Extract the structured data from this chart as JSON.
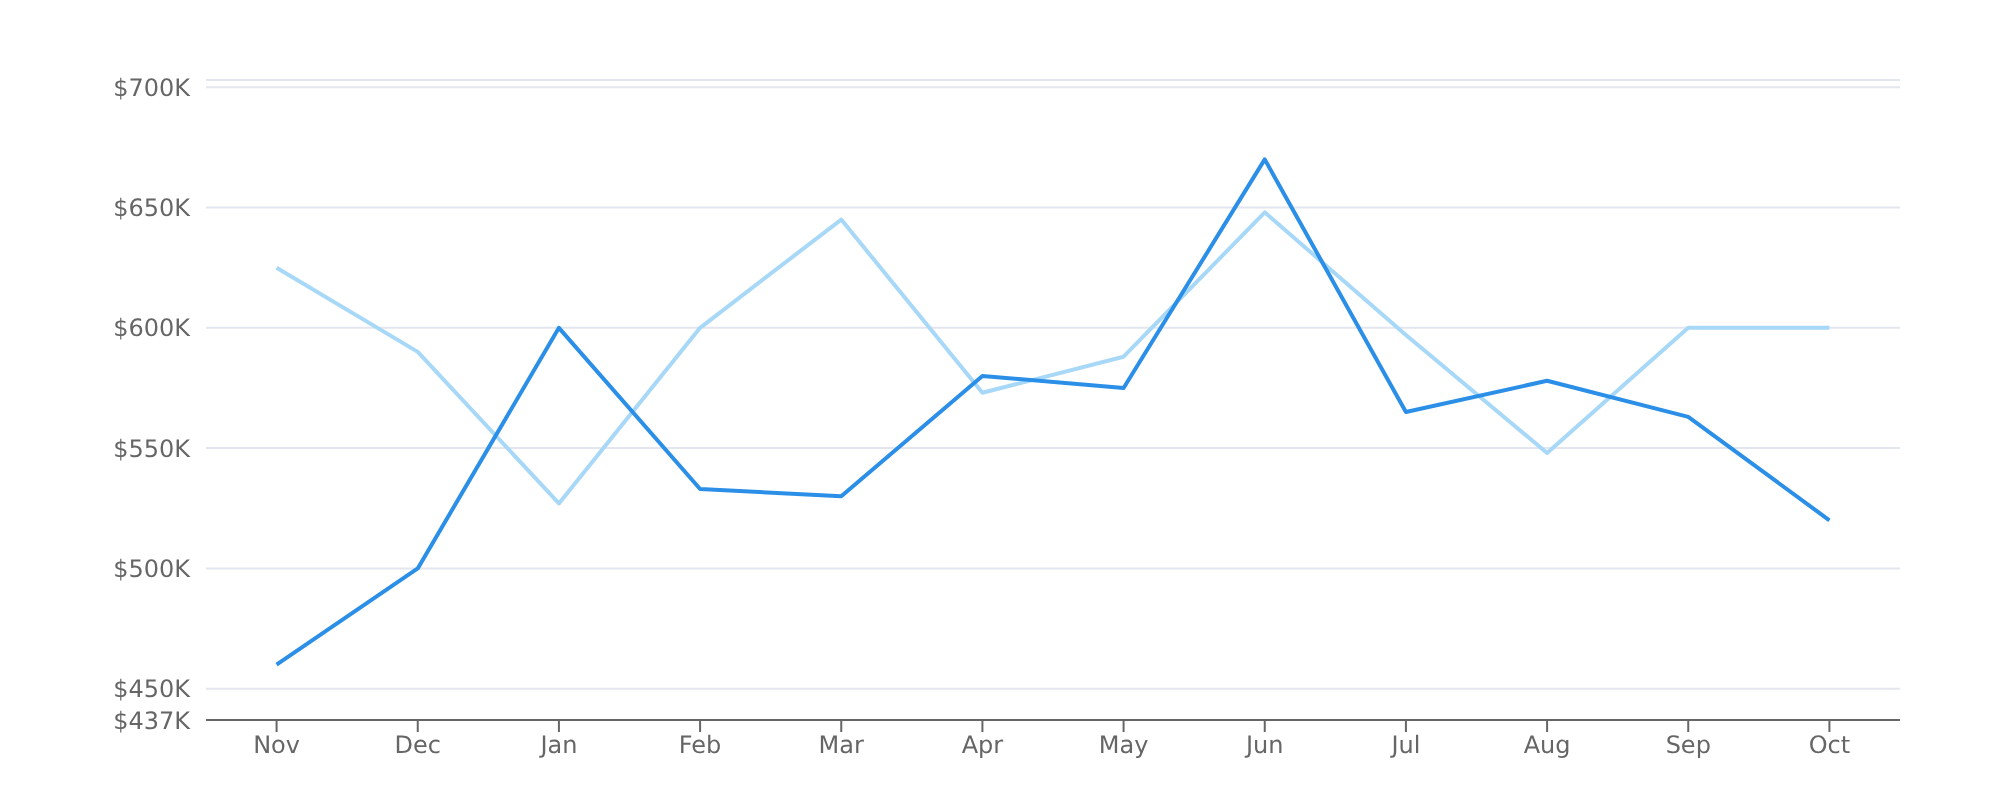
{
  "chart_data": {
    "type": "line",
    "categories": [
      "Nov",
      "Dec",
      "Jan",
      "Feb",
      "Mar",
      "Apr",
      "May",
      "Jun",
      "Jul",
      "Aug",
      "Sep",
      "Oct"
    ],
    "series": [
      {
        "color": "#a8d8f8",
        "values": [
          625000,
          590000,
          527000,
          600000,
          645000,
          573000,
          588000,
          648000,
          597000,
          548000,
          600000,
          600000
        ]
      },
      {
        "color": "#2b8fe8",
        "values": [
          460000,
          500000,
          600000,
          533000,
          530000,
          580000,
          575000,
          670000,
          565000,
          578000,
          563000,
          520000
        ]
      }
    ],
    "ylim": [
      437000,
      703000
    ],
    "yticks": [
      {
        "value": 437000,
        "label": "$437K"
      },
      {
        "value": 450000,
        "label": "$450K"
      },
      {
        "value": 500000,
        "label": "$500K"
      },
      {
        "value": 550000,
        "label": "$550K"
      },
      {
        "value": 600000,
        "label": "$600K"
      },
      {
        "value": 650000,
        "label": "$650K"
      },
      {
        "value": 700000,
        "label": "$700K"
      }
    ],
    "grid": "y",
    "marker": "none",
    "line_style": "solid",
    "legend": false
  }
}
